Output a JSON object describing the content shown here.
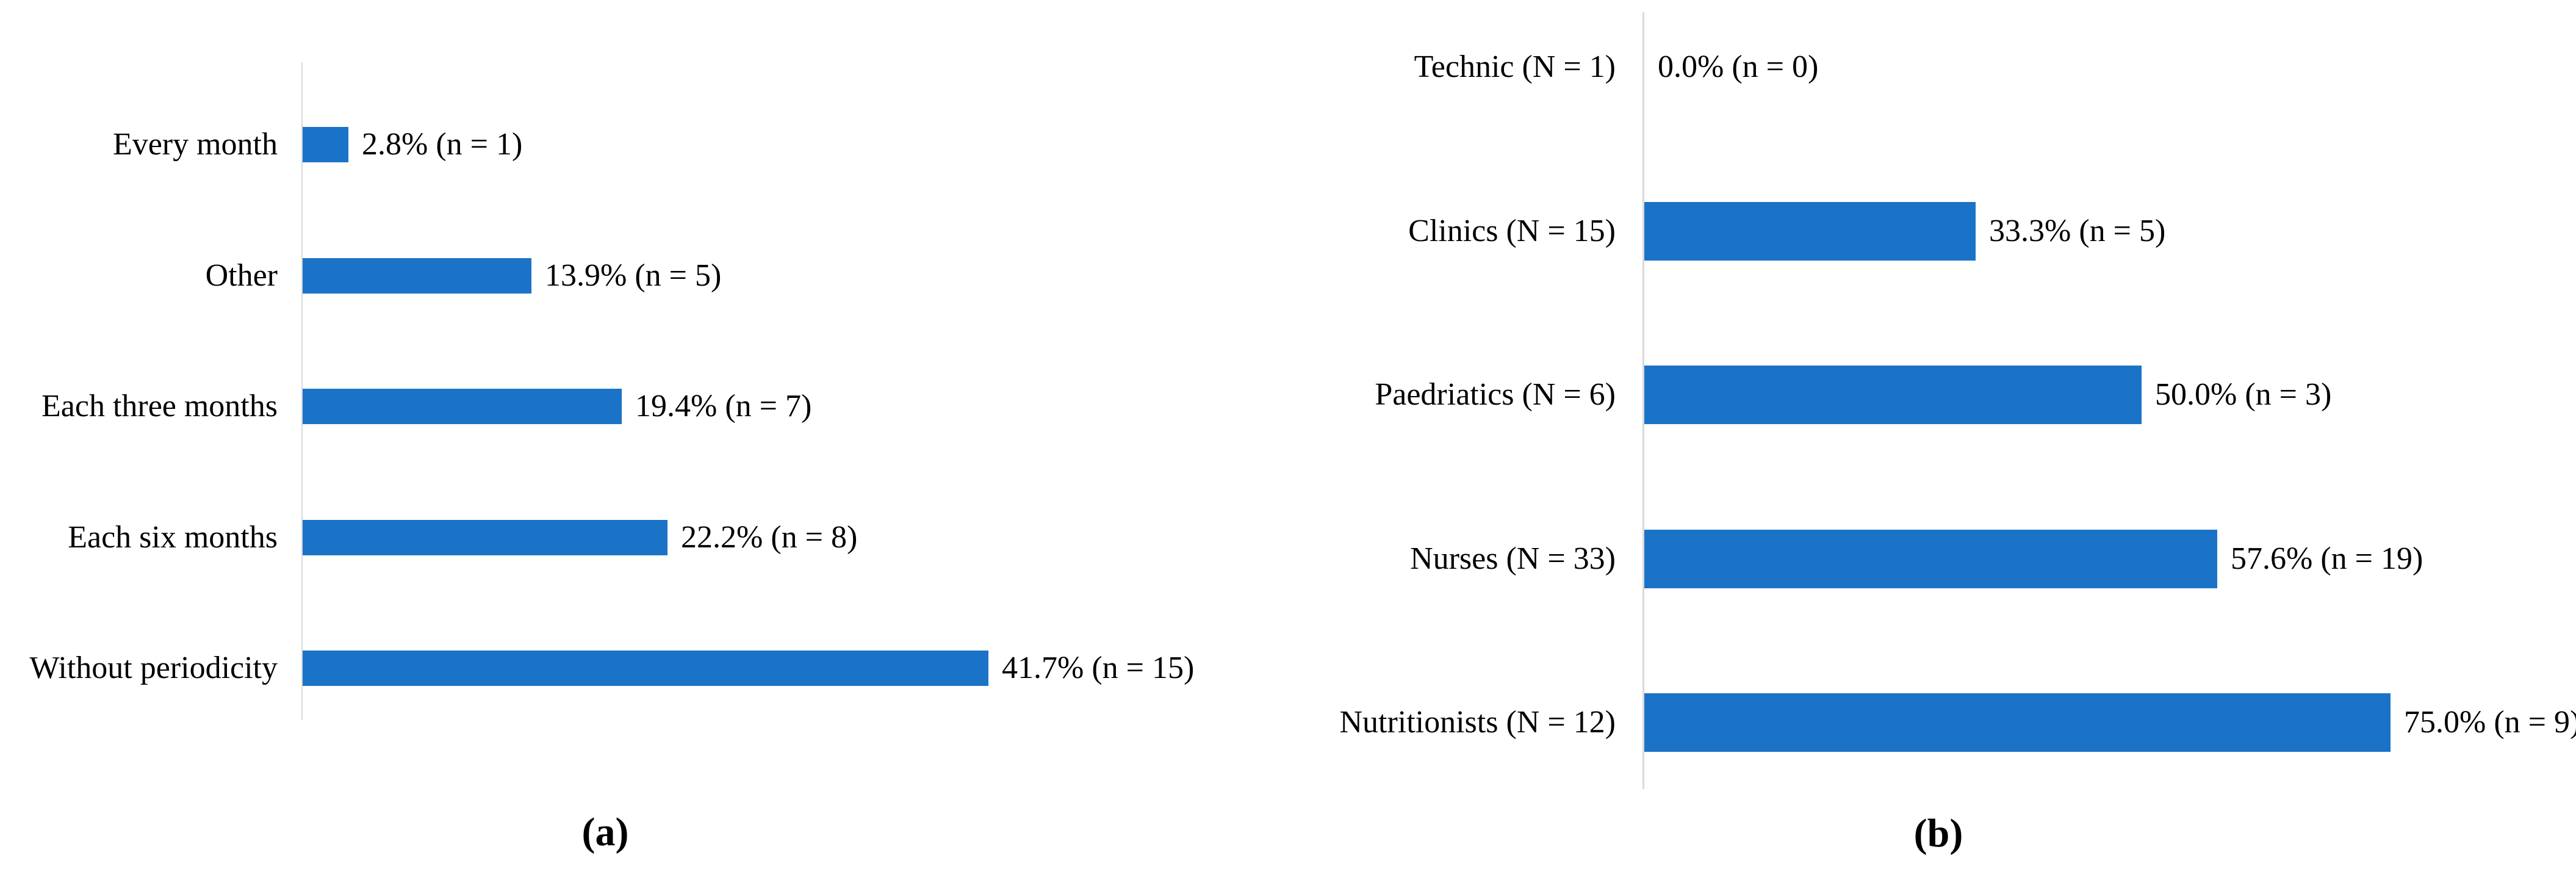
{
  "figure": {
    "captions": {
      "a": "(a)",
      "b": "(b)"
    }
  },
  "colors": {
    "bar": "#1B73C8",
    "axis": "#D9D9D9",
    "text": "#000000",
    "background": "#FFFFFF"
  },
  "chart_data": [
    {
      "panel": "a",
      "type": "bar",
      "orientation": "horizontal",
      "title": "",
      "xlabel": "",
      "ylabel": "",
      "grid": false,
      "legend": false,
      "value_unit": "%",
      "categories": [
        "Every month",
        "Other",
        "Each three months",
        "Each six months",
        "Without periodicity"
      ],
      "values": [
        2.8,
        13.9,
        19.4,
        22.2,
        41.7
      ],
      "counts": [
        1,
        5,
        7,
        8,
        15
      ],
      "data_labels": [
        "2.8% (n = 1)",
        "13.9% (n = 5)",
        "19.4% (n = 7)",
        "22.2% (n = 8)",
        "41.7% (n = 15)"
      ]
    },
    {
      "panel": "b",
      "type": "bar",
      "orientation": "horizontal",
      "title": "",
      "xlabel": "",
      "ylabel": "",
      "grid": false,
      "legend": false,
      "value_unit": "%",
      "categories": [
        "Technic (N = 1)",
        "Clinics (N = 15)",
        "Paedriatics (N = 6)",
        "Nurses (N = 33)",
        "Nutritionists (N = 12)"
      ],
      "values": [
        0.0,
        33.3,
        50.0,
        57.6,
        75.0
      ],
      "counts": [
        0,
        5,
        3,
        19,
        9
      ],
      "data_labels": [
        "0.0% (n = 0)",
        "33.3% (n = 5)",
        "50.0% (n = 3)",
        "57.6% (n = 19)",
        "75.0% (n = 9)"
      ]
    }
  ]
}
